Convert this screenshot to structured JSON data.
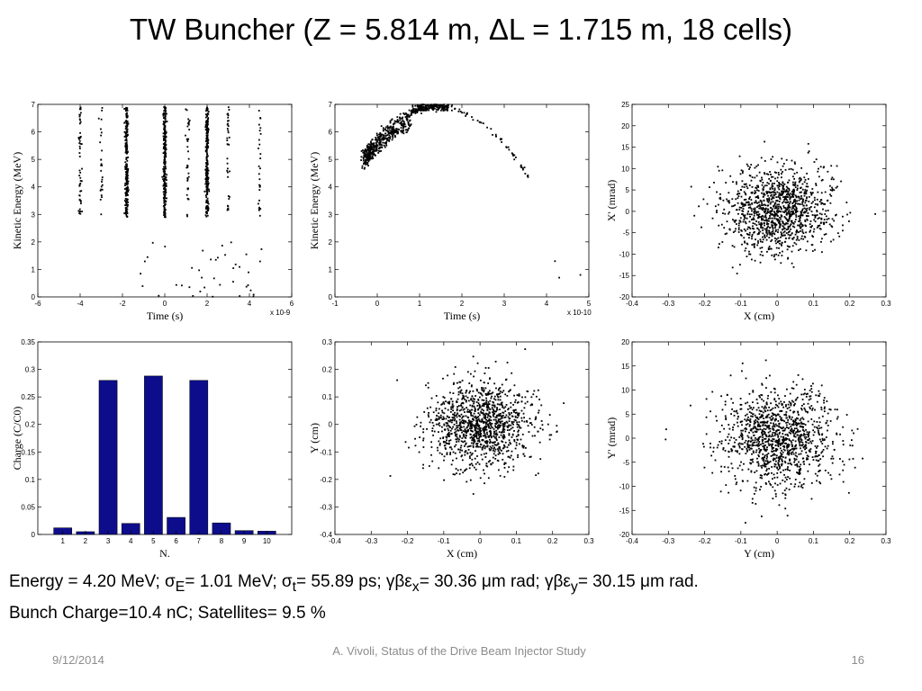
{
  "slide": {
    "title_pre": "TW Buncher (Z = 5.814 m, ",
    "delta": "Δ",
    "title_post": "L = 1.715 m, 18 cells)",
    "caption": {
      "l1_a": "Energy = 4.20 MeV; ",
      "sigma": "σ",
      "sub_E": "E",
      "l1_b": "= 1.01 MeV; ",
      "sub_t": "t",
      "l1_c": "= 55.89 ps;  ",
      "gbe": "γβε",
      "sub_x": "x",
      "l1_d": "= 30.36 ",
      "mu": "μ",
      "l1_e": "m rad; ",
      "sub_y": "y",
      "l1_f": "= 30.15 ",
      "l1_g": "m rad.",
      "line2": "Bunch Charge=10.4 nC; Satellites= 9.5 %"
    },
    "footer": {
      "date": "9/12/2014",
      "center": "A. Vivoli, Status of the Drive Beam Injector Study",
      "page": "16"
    }
  },
  "chart_data": [
    {
      "id": "energy-vs-time-full",
      "type": "scatter",
      "xlabel": "Time  (s)",
      "ylabel": "Kinetic Energy  (MeV)",
      "xlim": [
        -6,
        6
      ],
      "ylim": [
        0,
        7
      ],
      "x_ticks": [
        "-6",
        "-4",
        "-2",
        "0",
        "2",
        "4",
        "6"
      ],
      "y_ticks": [
        "0",
        "1",
        "2",
        "3",
        "4",
        "5",
        "6",
        "7"
      ],
      "x_scale_label": "x 10-9",
      "bunch_centers": [
        -4,
        -3,
        -1.8,
        0,
        1.1,
        2,
        3,
        4.5
      ],
      "bunch_density": [
        0.06,
        0.03,
        0.25,
        0.28,
        0.04,
        0.27,
        0.04,
        0.03
      ]
    },
    {
      "id": "energy-vs-time-main-bunch",
      "type": "scatter",
      "xlabel": "Time  (s)",
      "ylabel": "Kinetic Energy  (MeV)",
      "xlim": [
        -1,
        5
      ],
      "ylim": [
        0,
        7
      ],
      "x_ticks": [
        "-1",
        "0",
        "1",
        "2",
        "3",
        "4",
        "5"
      ],
      "y_ticks": [
        "0",
        "1",
        "2",
        "3",
        "4",
        "5",
        "6",
        "7"
      ],
      "x_scale_label": "x 10-10",
      "peak": {
        "x": 1.4,
        "y": 6.95
      }
    },
    {
      "id": "x-phase-space",
      "type": "scatter",
      "xlabel": "X  (cm)",
      "ylabel": "X'  (mrad)",
      "xlim": [
        -0.4,
        0.3
      ],
      "ylim": [
        -20,
        25
      ],
      "x_ticks": [
        "-0.4",
        "-0.3",
        "-0.2",
        "-0.1",
        "0",
        "0.1",
        "0.2",
        "0.3"
      ],
      "y_ticks": [
        "-20",
        "-15",
        "-10",
        "-5",
        "0",
        "5",
        "10",
        "15",
        "20",
        "25"
      ],
      "sigma_x": 0.075,
      "sigma_y": 5.0
    },
    {
      "id": "charge-per-bunch",
      "type": "bar",
      "xlabel": "N.",
      "ylabel": "Charge (C/C0)",
      "categories": [
        "1",
        "2",
        "3",
        "4",
        "5",
        "6",
        "7",
        "8",
        "9",
        "10"
      ],
      "values": [
        0.012,
        0.005,
        0.28,
        0.02,
        0.288,
        0.031,
        0.28,
        0.021,
        0.007,
        0.006
      ],
      "ylim": [
        0,
        0.35
      ],
      "y_ticks": [
        "0",
        "0.05",
        "0.1",
        "0.15",
        "0.2",
        "0.25",
        "0.3",
        "0.35"
      ],
      "color": "#0d0d8c"
    },
    {
      "id": "xy-spot",
      "type": "scatter",
      "xlabel": "X  (cm)",
      "ylabel": "Y  (cm)",
      "xlim": [
        -0.4,
        0.3
      ],
      "ylim": [
        -0.4,
        0.3
      ],
      "x_ticks": [
        "-0.4",
        "-0.3",
        "-0.2",
        "-0.1",
        "0",
        "0.1",
        "0.2",
        "0.3"
      ],
      "y_ticks": [
        "-0.4",
        "-0.3",
        "-0.2",
        "-0.1",
        "0",
        "0.1",
        "0.2",
        "0.3"
      ],
      "sigma_x": 0.075,
      "sigma_y": 0.075
    },
    {
      "id": "y-phase-space",
      "type": "scatter",
      "xlabel": "Y  (cm)",
      "ylabel": "Y'  (mrad)",
      "xlim": [
        -0.4,
        0.3
      ],
      "ylim": [
        -20,
        20
      ],
      "x_ticks": [
        "-0.4",
        "-0.3",
        "-0.2",
        "-0.1",
        "0",
        "0.1",
        "0.2",
        "0.3"
      ],
      "y_ticks": [
        "-20",
        "-15",
        "-10",
        "-5",
        "0",
        "5",
        "10",
        "15",
        "20"
      ],
      "sigma_x": 0.075,
      "sigma_y": 5.0
    }
  ]
}
